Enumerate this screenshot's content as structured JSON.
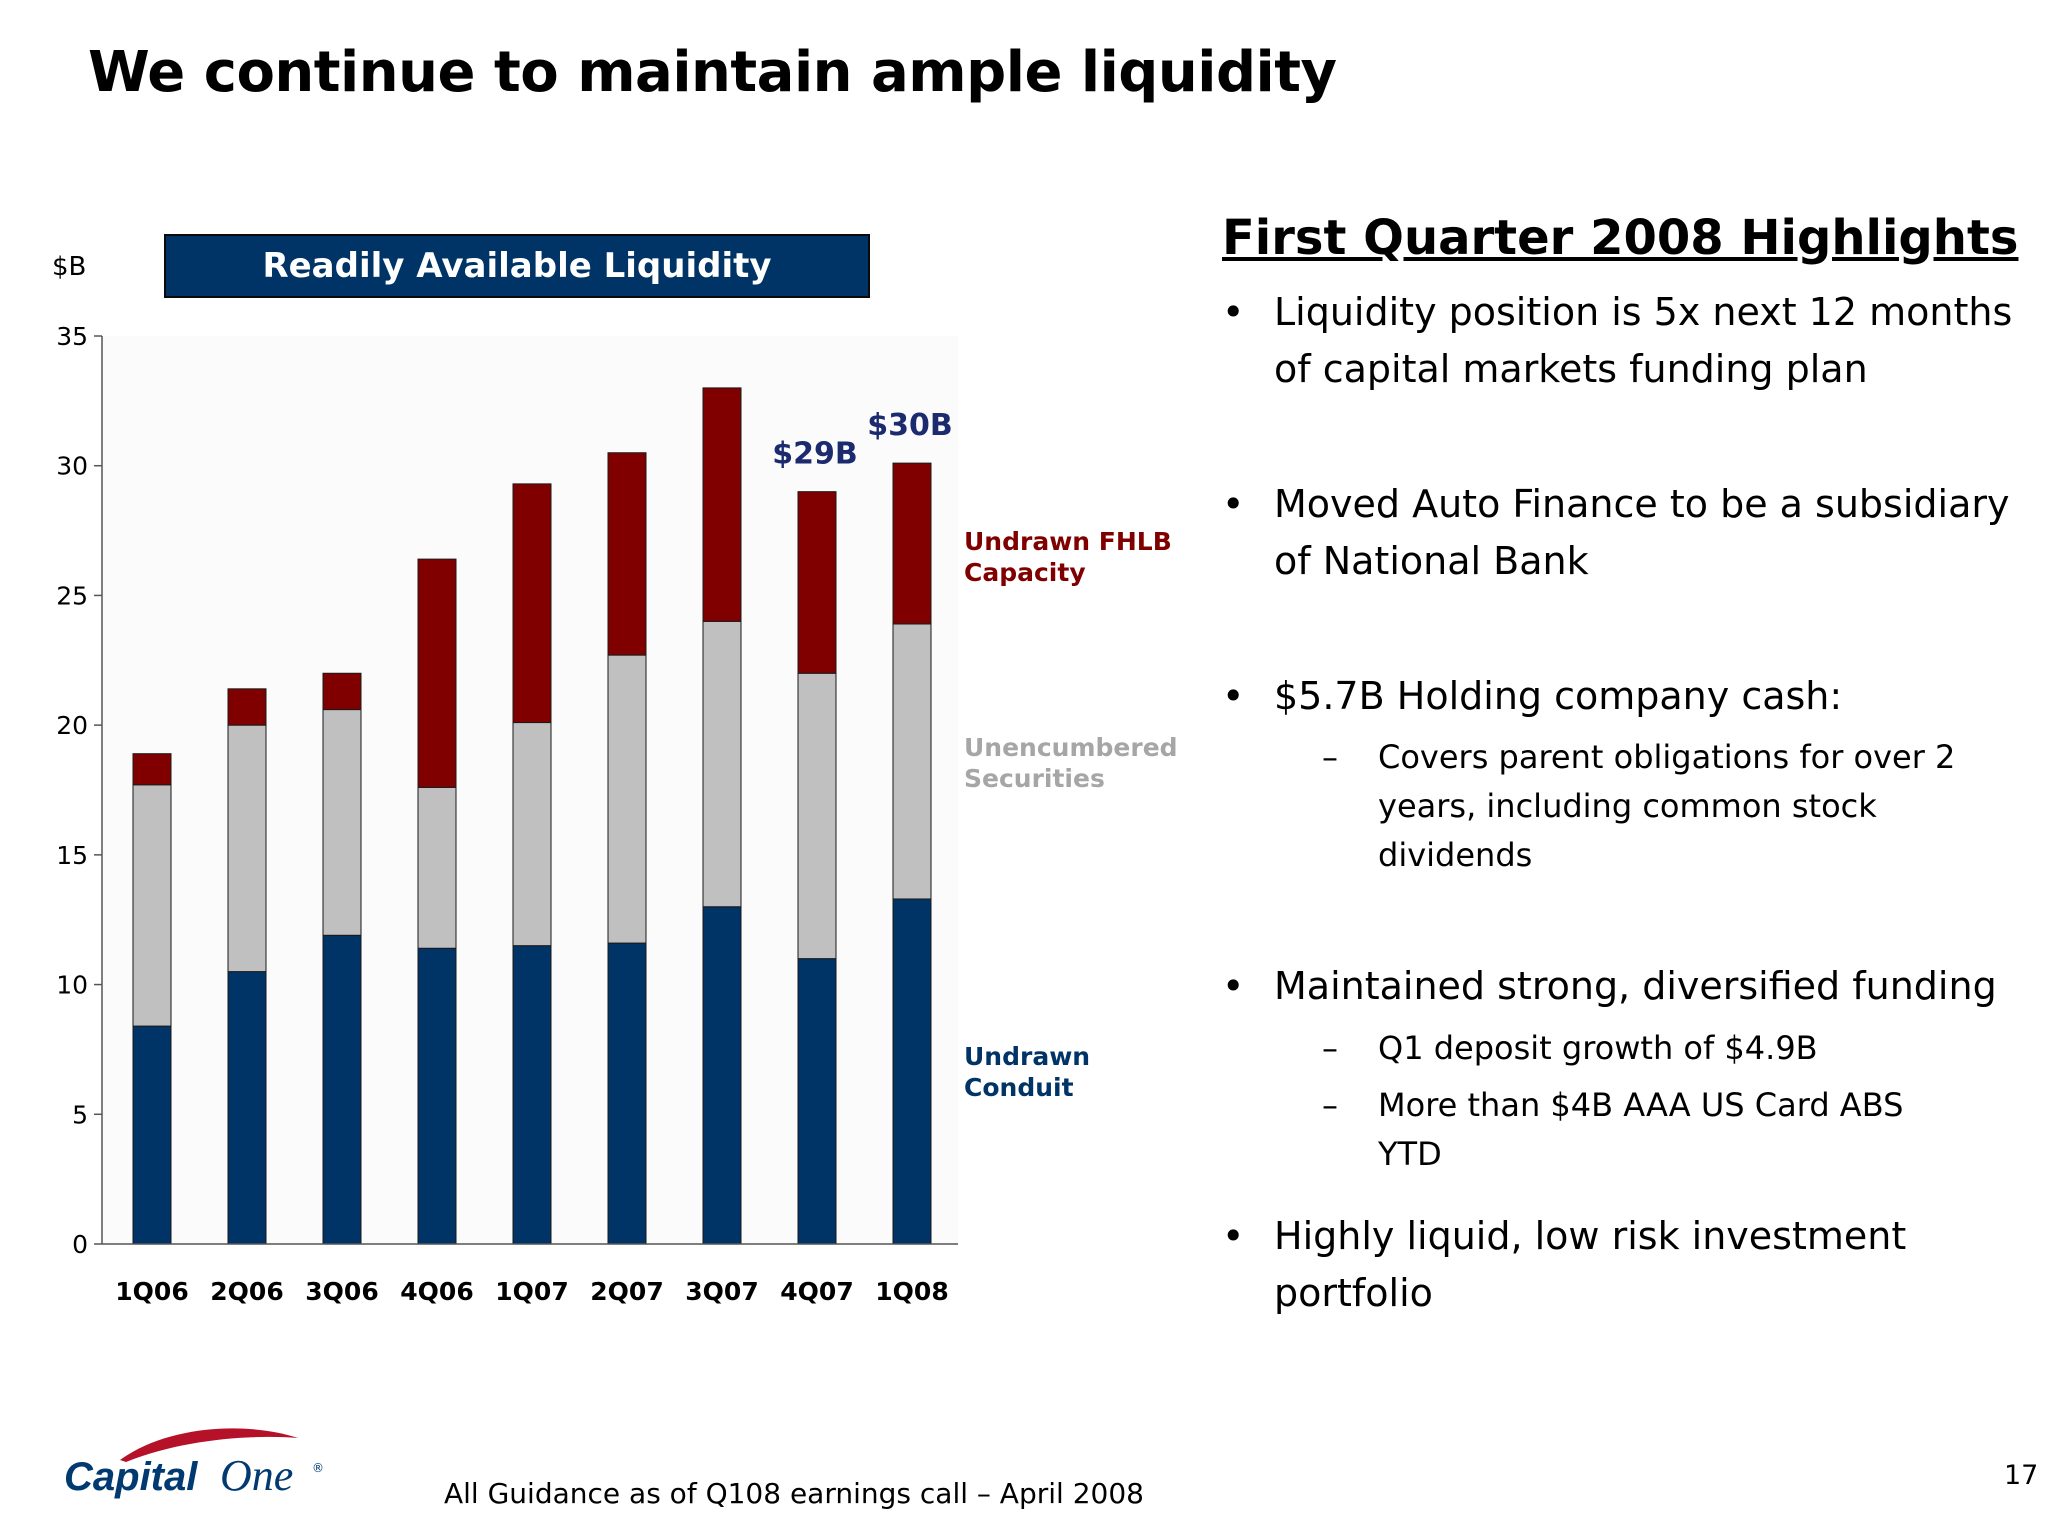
{
  "slide": {
    "title": "We continue to maintain ample liquidity",
    "footnote": "All Guidance as of Q108 earnings call – April 2008",
    "page_number": "17",
    "logo": {
      "text_left": "Capital",
      "text_right": "One",
      "tm": "®",
      "icon": "capital-one-swoosh-logo"
    }
  },
  "chart_panel": {
    "banner": "Readily Available Liquidity",
    "unit_label": "$B",
    "callouts": [
      {
        "category": "4Q07",
        "text": "$29B"
      },
      {
        "category": "1Q08",
        "text": "$30B"
      }
    ]
  },
  "chart_data": {
    "type": "bar",
    "stacked": true,
    "categories": [
      "1Q06",
      "2Q06",
      "3Q06",
      "4Q06",
      "1Q07",
      "2Q07",
      "3Q07",
      "4Q07",
      "1Q08"
    ],
    "series": [
      {
        "name": "Undrawn Conduit",
        "color": "#003366",
        "values": [
          8.4,
          10.5,
          11.9,
          11.4,
          11.5,
          11.6,
          13.0,
          11.0,
          13.3
        ]
      },
      {
        "name": "Unencumbered Securities",
        "color": "#c0c0c0",
        "values": [
          9.3,
          9.5,
          8.7,
          6.2,
          8.6,
          11.1,
          11.0,
          11.0,
          10.6
        ]
      },
      {
        "name": "Undrawn FHLB Capacity",
        "color": "#800000",
        "values": [
          1.2,
          1.4,
          1.4,
          8.8,
          9.2,
          7.8,
          9.0,
          7.0,
          6.2
        ]
      }
    ],
    "legend": [
      {
        "lines": [
          "Undrawn FHLB",
          "Capacity"
        ],
        "color": "#800000"
      },
      {
        "lines": [
          "Unencumbered",
          "Securities"
        ],
        "color": "#a6a6a6"
      },
      {
        "lines": [
          "Undrawn",
          "Conduit"
        ],
        "color": "#003366"
      }
    ],
    "ylim": [
      0,
      35
    ],
    "yticks": [
      "0",
      "5",
      "10",
      "15",
      "20",
      "25",
      "30",
      "35"
    ],
    "legend_position": "right",
    "grid": false
  },
  "highlights": {
    "title": "First Quarter 2008 Highlights",
    "bullet_symbol": "•",
    "dash_symbol": "–",
    "bullets": [
      {
        "lines": [
          "Liquidity position is 5x next 12 months",
          "of capital markets funding plan"
        ],
        "subs": []
      },
      {
        "lines": [
          "Moved Auto Finance to  be a subsidiary",
          "of National Bank"
        ],
        "subs": []
      },
      {
        "lines": [
          "$5.7B Holding company cash:"
        ],
        "subs": [
          {
            "lines": [
              "Covers parent obligations for over 2",
              "years, including common stock",
              "dividends"
            ]
          }
        ]
      },
      {
        "lines": [
          "Maintained strong, diversified funding"
        ],
        "subs": [
          {
            "lines": [
              "Q1 deposit growth of $4.9B"
            ]
          },
          {
            "lines": [
              "More than $4B AAA US Card ABS YTD"
            ]
          }
        ]
      },
      {
        "lines": [
          "Highly liquid, low risk investment",
          "portfolio"
        ],
        "subs": []
      }
    ]
  }
}
